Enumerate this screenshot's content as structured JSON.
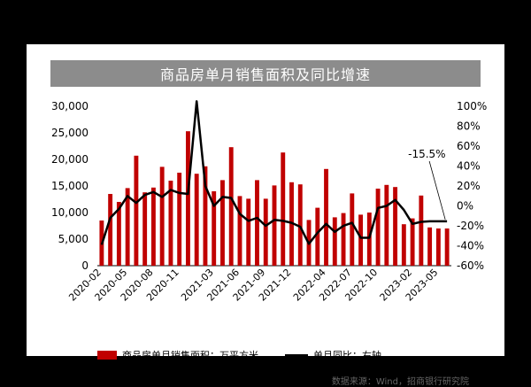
{
  "title": "商品房单月销售面积及同比增速",
  "source": "数据来源：Wind，招商银行研究院",
  "annotation": "-15.5%",
  "colors": {
    "bar": "#c00000",
    "line": "#000000",
    "title_bg": "#8c8c8c"
  },
  "chart_data": {
    "type": "bar+line",
    "categories": [
      "2020-02",
      "2020-03",
      "2020-04",
      "2020-05",
      "2020-06",
      "2020-07",
      "2020-08",
      "2020-09",
      "2020-10",
      "2020-11",
      "2020-12",
      "2021-01",
      "2021-02",
      "2021-03",
      "2021-04",
      "2021-05",
      "2021-06",
      "2021-07",
      "2021-08",
      "2021-09",
      "2021-10",
      "2021-11",
      "2021-12",
      "2022-01",
      "2022-02",
      "2022-03",
      "2022-04",
      "2022-05",
      "2022-06",
      "2022-07",
      "2022-08",
      "2022-09",
      "2022-10",
      "2022-11",
      "2022-12",
      "2023-01",
      "2023-02",
      "2023-03",
      "2023-04",
      "2023-05",
      "2023-06"
    ],
    "x_tick_labels": [
      "2020-02",
      "2020-05",
      "2020-08",
      "2020-11",
      "2021-03",
      "2021-06",
      "2021-09",
      "2021-12",
      "2022-04",
      "2022-07",
      "2022-10",
      "2023-02",
      "2023-05"
    ],
    "series": [
      {
        "name": "商品房单月销售面积：万平方米",
        "type": "bar",
        "axis": "left",
        "values": [
          8500,
          13500,
          12000,
          14600,
          20700,
          13800,
          14700,
          18600,
          16000,
          17500,
          25300,
          17300,
          18700,
          14000,
          16100,
          22300,
          13100,
          12600,
          16100,
          12600,
          15100,
          21300,
          15700,
          15300,
          8600,
          10900,
          18200,
          9100,
          9900,
          13600,
          9600,
          10000,
          14500,
          15200,
          14800,
          7800,
          8900,
          13200,
          7200,
          7000,
          7000
        ]
      },
      {
        "name": "单月同比：右轴",
        "type": "line",
        "axis": "right",
        "values": [
          -39,
          -12,
          -3,
          10,
          3,
          11,
          14,
          9,
          16,
          13,
          12,
          105,
          20,
          0,
          9,
          8,
          -8,
          -15,
          -12,
          -20,
          -14,
          -15,
          -17,
          -21,
          -38,
          -27,
          -18,
          -26,
          -20,
          -17,
          -32,
          -32,
          -2,
          0,
          6,
          -4,
          -18,
          -16,
          -15.5,
          -15.5,
          -15.5
        ]
      }
    ],
    "left_axis": {
      "ylim": [
        0,
        30000
      ],
      "ticks": [
        "0",
        "5,000",
        "10,000",
        "15,000",
        "20,000",
        "25,000",
        "30,000"
      ]
    },
    "right_axis": {
      "ylim": [
        -60,
        100
      ],
      "ticks": [
        "-60%",
        "-40%",
        "-20%",
        "0%",
        "20%",
        "40%",
        "60%",
        "80%",
        "100%"
      ]
    },
    "legend": [
      "商品房单月销售面积：万平方米",
      "单月同比：右轴"
    ]
  }
}
